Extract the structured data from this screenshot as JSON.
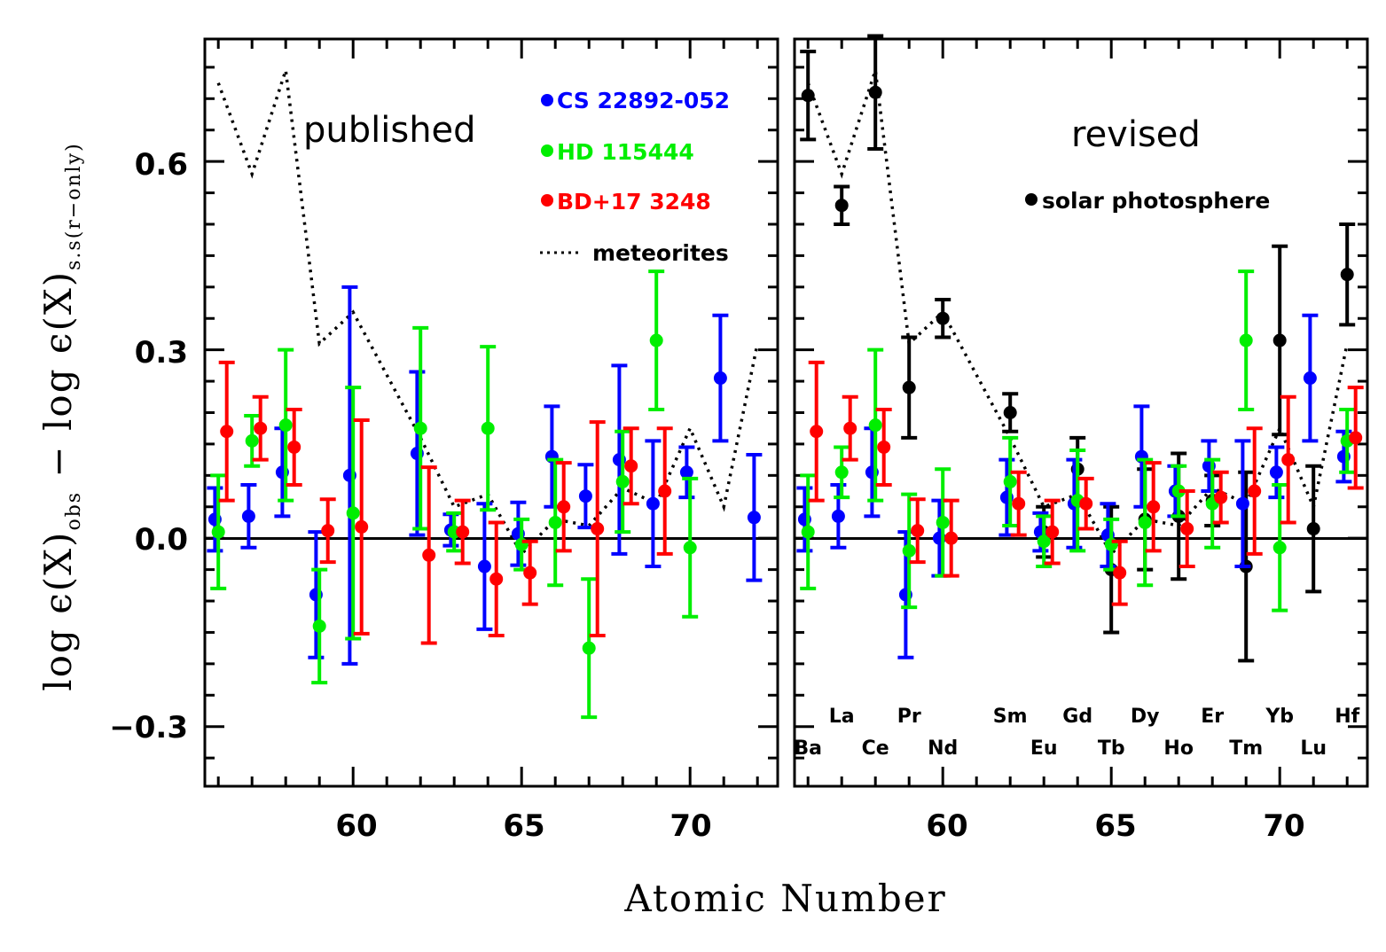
{
  "chart_data": [
    {
      "panel": "published",
      "type": "scatter",
      "title": "published",
      "xlabel": "Atomic Number",
      "ylabel": "log ϵ(X)obs − log ϵ(X)s.s(r−only)",
      "xlim": [
        55.6,
        72.6
      ],
      "ylim": [
        -0.395,
        0.795
      ],
      "xticks": [
        "60",
        "65",
        "70"
      ],
      "yticks": [
        "−0.3",
        "0.0",
        "0.3",
        "0.6"
      ],
      "legend": [
        "CS 22892-052",
        "HD 115444",
        "BD+17 3248",
        "meteorites"
      ],
      "series": [
        {
          "name": "CS 22892-052",
          "color": "#0000ff",
          "points": [
            {
              "x": 56,
              "y": 0.03,
              "err": 0.05
            },
            {
              "x": 57,
              "y": 0.035,
              "err": 0.05
            },
            {
              "x": 58,
              "y": 0.105,
              "err": 0.07
            },
            {
              "x": 59,
              "y": -0.09,
              "err": 0.1
            },
            {
              "x": 60,
              "y": 0.1,
              "err": 0.3
            },
            {
              "x": 62,
              "y": 0.135,
              "err": 0.13
            },
            {
              "x": 63,
              "y": 0.013,
              "err": 0.025
            },
            {
              "x": 64,
              "y": -0.045,
              "err": 0.1
            },
            {
              "x": 65,
              "y": 0.007,
              "err": 0.05
            },
            {
              "x": 66,
              "y": 0.13,
              "err": 0.08
            },
            {
              "x": 67,
              "y": 0.067,
              "err": 0.05
            },
            {
              "x": 68,
              "y": 0.125,
              "err": 0.15
            },
            {
              "x": 69,
              "y": 0.055,
              "err": 0.1
            },
            {
              "x": 70,
              "y": 0.105,
              "err": 0.04
            },
            {
              "x": 71,
              "y": 0.255,
              "err": 0.1
            },
            {
              "x": 72,
              "y": 0.033,
              "err": 0.1
            }
          ]
        },
        {
          "name": "HD 115444",
          "color": "#00ee00",
          "points": [
            {
              "x": 56,
              "y": 0.01,
              "err": 0.09
            },
            {
              "x": 57,
              "y": 0.155,
              "err": 0.04
            },
            {
              "x": 58,
              "y": 0.18,
              "err": 0.12
            },
            {
              "x": 59,
              "y": -0.14,
              "err": 0.09
            },
            {
              "x": 60,
              "y": 0.04,
              "err": 0.2
            },
            {
              "x": 62,
              "y": 0.175,
              "err": 0.16
            },
            {
              "x": 63,
              "y": 0.01,
              "err": 0.03
            },
            {
              "x": 64,
              "y": 0.175,
              "err": 0.13
            },
            {
              "x": 65,
              "y": -0.01,
              "err": 0.04
            },
            {
              "x": 66,
              "y": 0.025,
              "err": 0.1
            },
            {
              "x": 67,
              "y": -0.175,
              "err": 0.11
            },
            {
              "x": 68,
              "y": 0.09,
              "err": 0.08
            },
            {
              "x": 69,
              "y": 0.315,
              "err": 0.11
            },
            {
              "x": 70,
              "y": -0.015,
              "err": 0.11
            }
          ]
        },
        {
          "name": "BD+17 3248",
          "color": "#ff0000",
          "points": [
            {
              "x": 56,
              "y": 0.17,
              "err": 0.11
            },
            {
              "x": 57,
              "y": 0.175,
              "err": 0.05
            },
            {
              "x": 58,
              "y": 0.145,
              "err": 0.06
            },
            {
              "x": 59,
              "y": 0.012,
              "err": 0.05
            },
            {
              "x": 60,
              "y": 0.018,
              "err": 0.17
            },
            {
              "x": 62,
              "y": -0.027,
              "err": 0.14
            },
            {
              "x": 63,
              "y": 0.01,
              "err": 0.05
            },
            {
              "x": 64,
              "y": -0.065,
              "err": 0.09
            },
            {
              "x": 65,
              "y": -0.055,
              "err": 0.05
            },
            {
              "x": 66,
              "y": 0.05,
              "err": 0.07
            },
            {
              "x": 67,
              "y": 0.015,
              "err": 0.17
            },
            {
              "x": 68,
              "y": 0.115,
              "err": 0.06
            },
            {
              "x": 69,
              "y": 0.075,
              "err": 0.1
            }
          ]
        },
        {
          "name": "meteorites",
          "color": "#000000",
          "style": "dotted",
          "points": [
            {
              "x": 56,
              "y": 0.725
            },
            {
              "x": 57,
              "y": 0.58
            },
            {
              "x": 58,
              "y": 0.745
            },
            {
              "x": 59,
              "y": 0.31
            },
            {
              "x": 60,
              "y": 0.36
            },
            {
              "x": 62,
              "y": 0.16
            },
            {
              "x": 63,
              "y": 0.05
            },
            {
              "x": 64,
              "y": 0.07
            },
            {
              "x": 65,
              "y": -0.025
            },
            {
              "x": 66,
              "y": 0.03
            },
            {
              "x": 67,
              "y": 0.02
            },
            {
              "x": 68,
              "y": 0.08
            },
            {
              "x": 69,
              "y": 0.055
            },
            {
              "x": 70,
              "y": 0.175
            },
            {
              "x": 71,
              "y": 0.05
            },
            {
              "x": 72,
              "y": 0.31
            }
          ]
        }
      ]
    },
    {
      "panel": "revised",
      "type": "scatter",
      "title": "revised",
      "xlabel": "Atomic Number",
      "xlim": [
        55.6,
        72.6
      ],
      "ylim": [
        -0.395,
        0.795
      ],
      "xticks": [
        "60",
        "65",
        "70"
      ],
      "legend": [
        "solar photosphere"
      ],
      "element_labels": [
        {
          "z": 56,
          "symbol": "Ba",
          "row": "lower"
        },
        {
          "z": 57,
          "symbol": "La",
          "row": "upper"
        },
        {
          "z": 58,
          "symbol": "Ce",
          "row": "lower"
        },
        {
          "z": 59,
          "symbol": "Pr",
          "row": "upper"
        },
        {
          "z": 60,
          "symbol": "Nd",
          "row": "lower"
        },
        {
          "z": 62,
          "symbol": "Sm",
          "row": "upper"
        },
        {
          "z": 63,
          "symbol": "Eu",
          "row": "lower"
        },
        {
          "z": 64,
          "symbol": "Gd",
          "row": "upper"
        },
        {
          "z": 65,
          "symbol": "Tb",
          "row": "lower"
        },
        {
          "z": 66,
          "symbol": "Dy",
          "row": "upper"
        },
        {
          "z": 67,
          "symbol": "Ho",
          "row": "lower"
        },
        {
          "z": 68,
          "symbol": "Er",
          "row": "upper"
        },
        {
          "z": 69,
          "symbol": "Tm",
          "row": "lower"
        },
        {
          "z": 70,
          "symbol": "Yb",
          "row": "upper"
        },
        {
          "z": 71,
          "symbol": "Lu",
          "row": "lower"
        },
        {
          "z": 72,
          "symbol": "Hf",
          "row": "upper"
        }
      ],
      "series": [
        {
          "name": "solar photosphere",
          "color": "#000000",
          "points": [
            {
              "x": 56,
              "y": 0.705,
              "err": 0.07
            },
            {
              "x": 57,
              "y": 0.53,
              "err": 0.03
            },
            {
              "x": 58,
              "y": 0.71,
              "err": 0.09
            },
            {
              "x": 59,
              "y": 0.24,
              "err": 0.08
            },
            {
              "x": 60,
              "y": 0.35,
              "err": 0.03
            },
            {
              "x": 62,
              "y": 0.2,
              "err": 0.03
            },
            {
              "x": 63,
              "y": 0.01,
              "err": 0.04
            },
            {
              "x": 64,
              "y": 0.11,
              "err": 0.05
            },
            {
              "x": 65,
              "y": -0.05,
              "err": 0.1
            },
            {
              "x": 66,
              "y": 0.03,
              "err": 0.08
            },
            {
              "x": 67,
              "y": 0.035,
              "err": 0.1
            },
            {
              "x": 68,
              "y": 0.06,
              "err": 0.04
            },
            {
              "x": 69,
              "y": -0.045,
              "err": 0.15
            },
            {
              "x": 70,
              "y": 0.315,
              "err": 0.15
            },
            {
              "x": 71,
              "y": 0.015,
              "err": 0.1
            },
            {
              "x": 72,
              "y": 0.42,
              "err": 0.08
            }
          ]
        },
        {
          "name": "CS 22892-052",
          "color": "#0000ff",
          "points": [
            {
              "x": 56,
              "y": 0.03,
              "err": 0.05
            },
            {
              "x": 57,
              "y": 0.035,
              "err": 0.05
            },
            {
              "x": 58,
              "y": 0.105,
              "err": 0.07
            },
            {
              "x": 59,
              "y": -0.09,
              "err": 0.1
            },
            {
              "x": 60,
              "y": 0.0,
              "err": 0.06
            },
            {
              "x": 62,
              "y": 0.065,
              "err": 0.06
            },
            {
              "x": 63,
              "y": 0.01,
              "err": 0.03
            },
            {
              "x": 64,
              "y": 0.055,
              "err": 0.07
            },
            {
              "x": 65,
              "y": 0.005,
              "err": 0.05
            },
            {
              "x": 66,
              "y": 0.13,
              "err": 0.08
            },
            {
              "x": 67,
              "y": 0.075,
              "err": 0.04
            },
            {
              "x": 68,
              "y": 0.115,
              "err": 0.04
            },
            {
              "x": 69,
              "y": 0.055,
              "err": 0.1
            },
            {
              "x": 70,
              "y": 0.105,
              "err": 0.04
            },
            {
              "x": 71,
              "y": 0.255,
              "err": 0.1
            },
            {
              "x": 72,
              "y": 0.13,
              "err": 0.04
            }
          ]
        },
        {
          "name": "HD 115444",
          "color": "#00ee00",
          "points": [
            {
              "x": 56,
              "y": 0.01,
              "err": 0.09
            },
            {
              "x": 57,
              "y": 0.105,
              "err": 0.04
            },
            {
              "x": 58,
              "y": 0.18,
              "err": 0.12
            },
            {
              "x": 59,
              "y": -0.02,
              "err": 0.09
            },
            {
              "x": 60,
              "y": 0.025,
              "err": 0.085
            },
            {
              "x": 62,
              "y": 0.09,
              "err": 0.07
            },
            {
              "x": 63,
              "y": -0.005,
              "err": 0.04
            },
            {
              "x": 64,
              "y": 0.06,
              "err": 0.08
            },
            {
              "x": 65,
              "y": -0.01,
              "err": 0.04
            },
            {
              "x": 66,
              "y": 0.025,
              "err": 0.1
            },
            {
              "x": 67,
              "y": 0.075,
              "err": 0.04
            },
            {
              "x": 68,
              "y": 0.055,
              "err": 0.07
            },
            {
              "x": 69,
              "y": 0.315,
              "err": 0.11
            },
            {
              "x": 70,
              "y": -0.015,
              "err": 0.1
            },
            {
              "x": 72,
              "y": 0.155,
              "err": 0.05
            }
          ]
        },
        {
          "name": "BD+17 3248",
          "color": "#ff0000",
          "points": [
            {
              "x": 56,
              "y": 0.17,
              "err": 0.11
            },
            {
              "x": 57,
              "y": 0.175,
              "err": 0.05
            },
            {
              "x": 58,
              "y": 0.145,
              "err": 0.06
            },
            {
              "x": 59,
              "y": 0.012,
              "err": 0.05
            },
            {
              "x": 60,
              "y": 0.0,
              "err": 0.06
            },
            {
              "x": 62,
              "y": 0.055,
              "err": 0.05
            },
            {
              "x": 63,
              "y": 0.01,
              "err": 0.05
            },
            {
              "x": 64,
              "y": 0.055,
              "err": 0.04
            },
            {
              "x": 65,
              "y": -0.055,
              "err": 0.05
            },
            {
              "x": 66,
              "y": 0.05,
              "err": 0.07
            },
            {
              "x": 67,
              "y": 0.015,
              "err": 0.06
            },
            {
              "x": 68,
              "y": 0.065,
              "err": 0.04
            },
            {
              "x": 69,
              "y": 0.075,
              "err": 0.1
            },
            {
              "x": 70,
              "y": 0.125,
              "err": 0.1
            },
            {
              "x": 72,
              "y": 0.16,
              "err": 0.08
            }
          ]
        },
        {
          "name": "meteorites",
          "color": "#000000",
          "style": "dotted",
          "points": [
            {
              "x": 56,
              "y": 0.725
            },
            {
              "x": 57,
              "y": 0.58
            },
            {
              "x": 58,
              "y": 0.745
            },
            {
              "x": 59,
              "y": 0.31
            },
            {
              "x": 60,
              "y": 0.36
            },
            {
              "x": 62,
              "y": 0.16
            },
            {
              "x": 63,
              "y": 0.05
            },
            {
              "x": 64,
              "y": 0.07
            },
            {
              "x": 65,
              "y": -0.025
            },
            {
              "x": 66,
              "y": 0.03
            },
            {
              "x": 67,
              "y": 0.02
            },
            {
              "x": 68,
              "y": 0.08
            },
            {
              "x": 69,
              "y": 0.055
            },
            {
              "x": 70,
              "y": 0.175
            },
            {
              "x": 71,
              "y": 0.05
            },
            {
              "x": 72,
              "y": 0.31
            }
          ]
        }
      ]
    }
  ],
  "text": {
    "xlabel": "Atomic Number",
    "ylabel_main": "log  ϵ(X)",
    "ylabel_sub1": "obs",
    "ylabel_mid": "  −  log  ϵ(X)",
    "ylabel_sub2": "s.s(r−only)",
    "left_title": "published",
    "right_title": "revised",
    "legend_cs": "CS 22892-052",
    "legend_hd": "HD 115444",
    "legend_bd": "BD+17 3248",
    "legend_met": "meteorites",
    "legend_sun": "solar photosphere",
    "ytick_m03": "−0.3",
    "ytick_00": "0.0",
    "ytick_03": "0.3",
    "ytick_06": "0.6",
    "xtick_60_left": "60",
    "xtick_65_left": "65",
    "xtick_70_left": "70",
    "xtick_60_right": "60",
    "xtick_65_right": "65",
    "xtick_70_right": "70"
  },
  "colors": {
    "blue": "#0000ff",
    "green": "#00ee00",
    "red": "#ff0000",
    "black": "#000000"
  }
}
